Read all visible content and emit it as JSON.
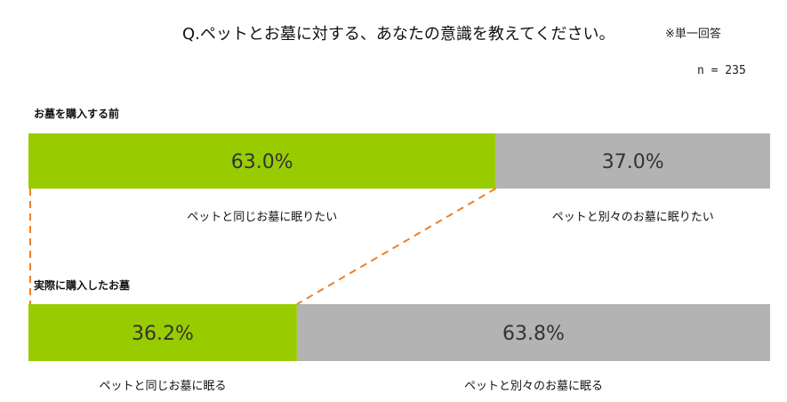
{
  "header": {
    "title": "Q.ペットとお墓に対する、あなたの意識を教えてください。",
    "note": "※単一回答",
    "sample": "n = 235"
  },
  "chart_data": {
    "type": "bar",
    "orientation": "horizontal-stacked-100",
    "title": "Q.ペットとお墓に対する、あなたの意識を教えてください。",
    "colors": {
      "green": "#99cc00",
      "gray": "#b3b3b3",
      "connector": "#f07f27"
    },
    "bars": [
      {
        "name": "お墓を購入する前",
        "segments": [
          {
            "label": "ペットと同じお墓に眠りたい",
            "value": 63.0,
            "display": "63.0%",
            "color": "#99cc00"
          },
          {
            "label": "ペットと別々のお墓に眠りたい",
            "value": 37.0,
            "display": "37.0%",
            "color": "#b3b3b3"
          }
        ]
      },
      {
        "name": "実際に購入したお墓",
        "segments": [
          {
            "label": "ペットと同じお墓に眠る",
            "value": 36.2,
            "display": "36.2%",
            "color": "#99cc00"
          },
          {
            "label": "ペットと別々のお墓に眠る",
            "value": 63.8,
            "display": "63.8%",
            "color": "#b3b3b3"
          }
        ]
      }
    ]
  }
}
